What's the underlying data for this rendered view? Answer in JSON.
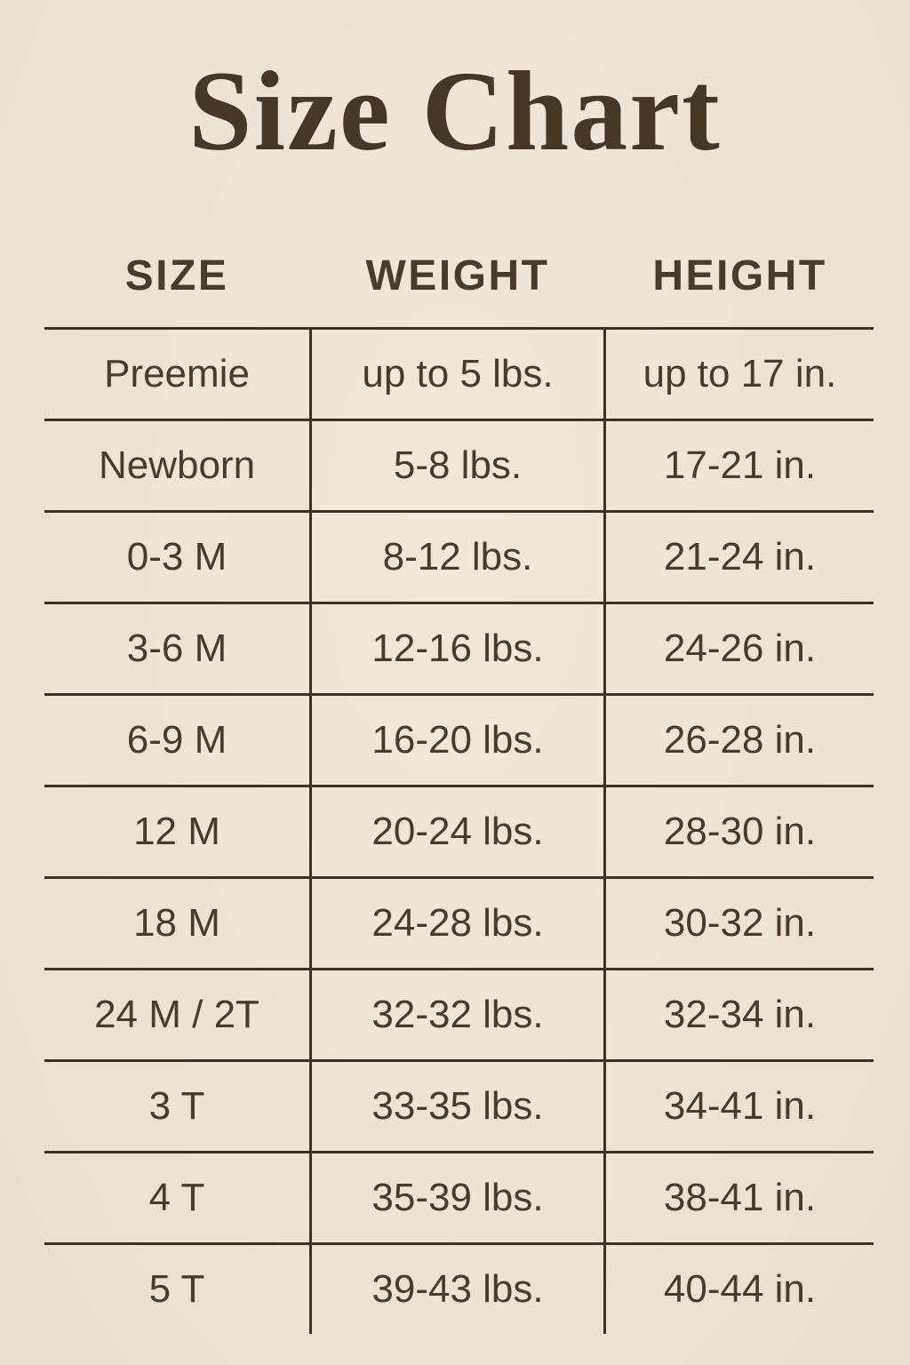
{
  "page": {
    "title": "Size Chart",
    "background_color": "#EDE4D5",
    "text_color": "#4A3C2A",
    "line_color": "#3B3124"
  },
  "table": {
    "headers": [
      "SIZE",
      "WEIGHT",
      "HEIGHT"
    ],
    "rows": [
      [
        "Preemie",
        "up to 5 lbs.",
        "up to 17 in."
      ],
      [
        "Newborn",
        "5-8 lbs.",
        "17-21 in."
      ],
      [
        "0-3 M",
        "8-12 lbs.",
        "21-24 in."
      ],
      [
        "3-6 M",
        "12-16 lbs.",
        "24-26 in."
      ],
      [
        "6-9 M",
        "16-20 lbs.",
        "26-28 in."
      ],
      [
        "12 M",
        "20-24 lbs.",
        "28-30 in."
      ],
      [
        "18 M",
        "24-28 lbs.",
        "30-32 in."
      ],
      [
        "24 M / 2T",
        "32-32 lbs.",
        "32-34 in."
      ],
      [
        "3 T",
        "33-35 lbs.",
        "34-41 in."
      ],
      [
        "4 T",
        "35-39 lbs.",
        "38-41 in."
      ],
      [
        "5 T",
        "39-43 lbs.",
        "40-44 in."
      ]
    ]
  }
}
